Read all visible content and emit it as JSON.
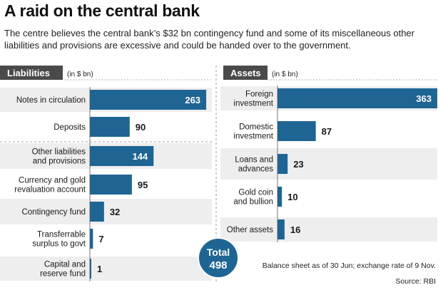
{
  "title": "A raid on the central bank",
  "subtitle": "The centre believes the central bank’s $32 bn contingency fund and some of its miscellaneous other liabilities and provisions are excessive and could be handed over to the government.",
  "colors": {
    "bar": "#1e6594",
    "panel_a": "#eeeeee",
    "panel_b": "#d9d9d9",
    "tab": "#4a4a4a",
    "total_bg": "#1e6594",
    "dark_text": "#1a1a1a",
    "light_text": "#ffffff"
  },
  "total": {
    "label": "Total",
    "value": "498"
  },
  "note": "Balance sheet as of 30 Jun; exchange rate of 9 Nov.",
  "source": "Source: RBI",
  "chart_data": [
    {
      "type": "bar",
      "orientation": "horizontal",
      "panel": "Liabilities",
      "unit": "(in $ bn)",
      "categories": [
        [
          "Notes in circulation"
        ],
        [
          "Deposits"
        ],
        [
          "Other liabilities",
          "and provisions"
        ],
        [
          "Currency and gold",
          "revaluation account"
        ],
        [
          "Contingency fund"
        ],
        [
          "Transferrable",
          "surplus to govt"
        ],
        [
          "Capital and",
          "reserve fund"
        ]
      ],
      "values": [
        263,
        90,
        144,
        95,
        32,
        7,
        1
      ],
      "value_labels": [
        "263",
        "90",
        "144",
        "95",
        "32",
        "7",
        "1"
      ]
    },
    {
      "type": "bar",
      "orientation": "horizontal",
      "panel": "Assets",
      "unit": "(in $ bn)",
      "categories": [
        [
          "Foreign",
          "investment"
        ],
        [
          "Domestic",
          "investment"
        ],
        [
          "Loans and",
          "advances"
        ],
        [
          "Gold coin",
          "and bullion"
        ],
        [
          "Other assets"
        ]
      ],
      "values": [
        363,
        87,
        23,
        10,
        16
      ],
      "value_labels": [
        "363",
        "87",
        "23",
        "10",
        "16"
      ]
    }
  ]
}
